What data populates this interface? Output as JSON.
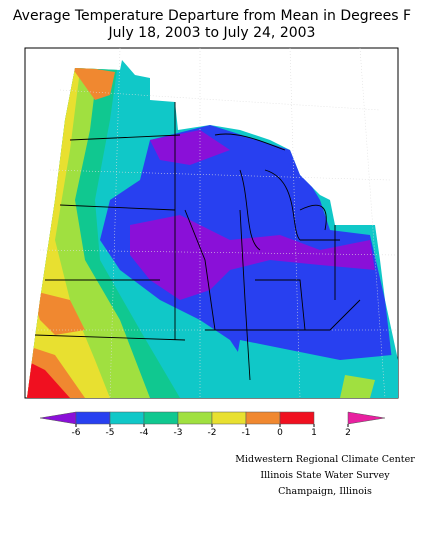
{
  "title": [
    "Average Temperature Departure from Mean in Degrees F",
    "July 18, 2003 to July 24, 2003"
  ],
  "legend": {
    "ticks": [
      -6,
      -5,
      -4,
      -3,
      -2,
      -1,
      0,
      1,
      2
    ],
    "colors": [
      "#8a10d8",
      "#2840f0",
      "#10c8c8",
      "#10c890",
      "#a0e040",
      "#e8e030",
      "#f08830",
      "#f01020",
      "#e820a0"
    ]
  },
  "credits": [
    "Midwestern Regional Climate Center",
    "Illinois State Water Survey",
    "Champaign, Illinois"
  ]
}
